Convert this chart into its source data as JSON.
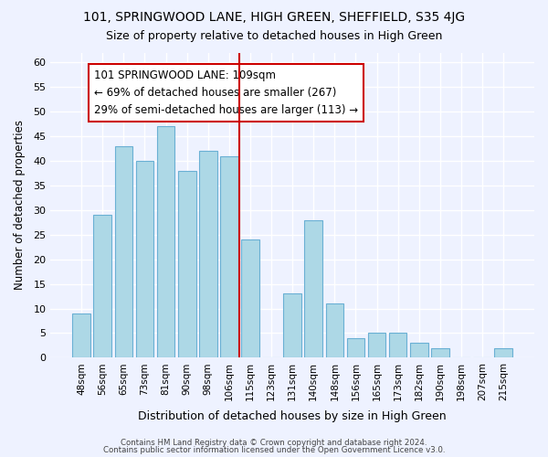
{
  "title": "101, SPRINGWOOD LANE, HIGH GREEN, SHEFFIELD, S35 4JG",
  "subtitle": "Size of property relative to detached houses in High Green",
  "xlabel": "Distribution of detached houses by size in High Green",
  "ylabel": "Number of detached properties",
  "footer_lines": [
    "Contains HM Land Registry data © Crown copyright and database right 2024.",
    "Contains public sector information licensed under the Open Government Licence v3.0."
  ],
  "bar_labels": [
    "48sqm",
    "56sqm",
    "65sqm",
    "73sqm",
    "81sqm",
    "90sqm",
    "98sqm",
    "106sqm",
    "115sqm",
    "123sqm",
    "131sqm",
    "140sqm",
    "148sqm",
    "156sqm",
    "165sqm",
    "173sqm",
    "182sqm",
    "190sqm",
    "198sqm",
    "207sqm",
    "215sqm"
  ],
  "bar_values": [
    9,
    29,
    43,
    40,
    47,
    38,
    42,
    41,
    24,
    0,
    13,
    28,
    11,
    4,
    5,
    5,
    3,
    2,
    0,
    0,
    2
  ],
  "bar_color": "#add8e6",
  "bar_edge_color": "#6ab0d4",
  "ylim": [
    0,
    62
  ],
  "yticks": [
    0,
    5,
    10,
    15,
    20,
    25,
    30,
    35,
    40,
    45,
    50,
    55,
    60
  ],
  "vline_x_index": 7,
  "vline_color": "#cc0000",
  "annotation_box_text": "101 SPRINGWOOD LANE: 109sqm\n← 69% of detached houses are smaller (267)\n29% of semi-detached houses are larger (113) →",
  "bg_color": "#eef2ff",
  "grid_color": "#ffffff",
  "annotation_fontsize": 8.5,
  "title_fontsize": 10,
  "subtitle_fontsize": 9
}
